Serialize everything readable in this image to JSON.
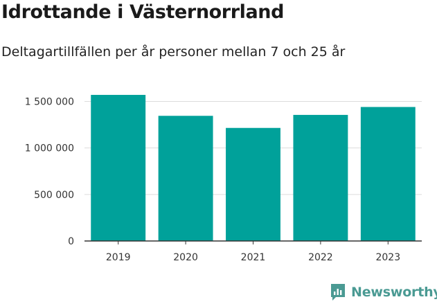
{
  "header": {
    "title": "Idrottande i Västernorrland",
    "subtitle": "Deltagartillfällen per år personer mellan 7 och 25 år"
  },
  "brand": {
    "name": "Newsworthy",
    "icon": "bar-chart-logo-icon",
    "color": "#4a9a93"
  },
  "chart_data": {
    "type": "bar",
    "categories": [
      "2019",
      "2020",
      "2021",
      "2022",
      "2023"
    ],
    "values": [
      1570000,
      1345000,
      1215000,
      1355000,
      1440000
    ],
    "ylim": [
      0,
      1600000
    ],
    "yticks": [
      0,
      500000,
      1000000,
      1500000
    ],
    "ytick_labels": [
      "0",
      "500 000",
      "1 000 000",
      "1 500 000"
    ],
    "xlabel": "",
    "ylabel": "",
    "bar_color": "#00a19a",
    "grid": true
  }
}
